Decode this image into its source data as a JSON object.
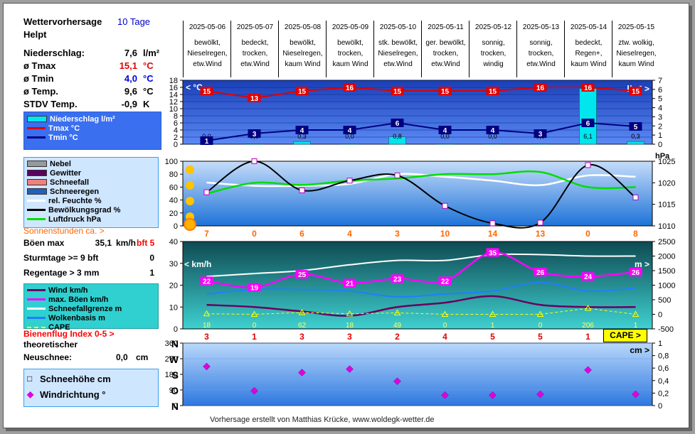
{
  "header": {
    "title": "Wettervorhersage",
    "range": "10 Tage",
    "place": "Helpt"
  },
  "stats": [
    {
      "label": "Niederschlag:",
      "value": "7,6",
      "unit": "l/m²",
      "color": "#000000"
    },
    {
      "label": "ø Tmax",
      "value": "15,1",
      "unit": "°C",
      "color": "#e00000"
    },
    {
      "label": "ø Tmin",
      "value": "4,0",
      "unit": "°C",
      "color": "#0000dd"
    },
    {
      "label": "ø Temp.",
      "value": "9,6",
      "unit": "°C",
      "color": "#000000"
    },
    {
      "label": "STDV Temp.",
      "value": "-0,9",
      "unit": "K",
      "color": "#000000"
    }
  ],
  "legend1": [
    {
      "label": "Niederschlag l/m²",
      "color": "#00e5ee",
      "kind": "bar"
    },
    {
      "label": "Tmax °C",
      "color": "#e00000",
      "kind": "line"
    },
    {
      "label": "Tmin °C",
      "color": "#000080",
      "kind": "line"
    }
  ],
  "legend2": [
    {
      "label": "Nebel",
      "color": "#999999",
      "kind": "bar"
    },
    {
      "label": "Gewitter",
      "color": "#5a0060",
      "kind": "bar"
    },
    {
      "label": "Schneefall",
      "color": "#f08080",
      "kind": "bar"
    },
    {
      "label": "Schneeregen",
      "color": "#2060c0",
      "kind": "bar"
    },
    {
      "label": "rel. Feuchte %",
      "color": "#ffffff",
      "kind": "line"
    },
    {
      "label": "Bewölkungsgrad %",
      "color": "#000000",
      "kind": "line"
    },
    {
      "label": "Luftdruck hPa",
      "color": "#00dd00",
      "kind": "line"
    }
  ],
  "sun": {
    "label": "Sonnenstunden ca. >"
  },
  "wind_stats": [
    {
      "label": "Böen max",
      "value": "35,1",
      "unit": "km/h",
      "extra": "bft 5"
    },
    {
      "label": "Sturmtage >= 9 bft",
      "value": "0",
      "unit": "",
      "extra": ""
    },
    {
      "label": "Regentage > 3 mm",
      "value": "1",
      "unit": "",
      "extra": ""
    }
  ],
  "legend3": [
    {
      "label": "Wind km/h",
      "color": "#6a0060",
      "kind": "line"
    },
    {
      "label": "max. Böen km/h",
      "color": "#ff00ff",
      "kind": "marker"
    },
    {
      "label": "Schneefallgrenze m",
      "color": "#ffffff",
      "kind": "line"
    },
    {
      "label": "Wolkenbasis m",
      "color": "#1e7fff",
      "kind": "line"
    },
    {
      "label": "CAPE",
      "color": "#ffff00",
      "kind": "dash"
    }
  ],
  "bees": {
    "label": "Bienenflug Index 0-5 >",
    "sub": "theoretischer"
  },
  "snow": {
    "label": "Neuschnee:",
    "value": "0,0",
    "unit": "cm"
  },
  "legend4": [
    {
      "label": "Schneehöhe cm",
      "kind": "square"
    },
    {
      "label": "Windrichtung °",
      "kind": "diamond"
    }
  ],
  "cape_button": "CAPE >",
  "footer": "Vorhersage erstellt von Matthias Krücke, www.woldegk-wetter.de",
  "chart_data": [
    {
      "type": "table",
      "columns": [
        "2025-05-06",
        "2025-05-07",
        "2025-05-08",
        "2025-05-09",
        "2025-05-10",
        "2025-05-11",
        "2025-05-12",
        "2025-05-13",
        "2025-05-14",
        "2025-05-15"
      ],
      "conditions": [
        [
          "bewölkt,",
          "Nieselregen,",
          "etw.Wind"
        ],
        [
          "bedeckt,",
          "trocken,",
          "etw.Wind"
        ],
        [
          "bewölkt,",
          "Nieselregen,",
          "kaum Wind"
        ],
        [
          "bewölkt,",
          "trocken,",
          "kaum Wind"
        ],
        [
          "stk. bewölkt,",
          "Nieselregen,",
          "etw.Wind"
        ],
        [
          "ger. bewölkt,",
          "trocken,",
          "etw.Wind"
        ],
        [
          "sonnig,",
          "trocken,",
          "windig"
        ],
        [
          "sonnig,",
          "trocken,",
          "etw.Wind"
        ],
        [
          "bedeckt,",
          "Regen+,",
          "kaum Wind"
        ],
        [
          "ztw. wolkig,",
          "Nieselregen,",
          "kaum Wind"
        ]
      ]
    },
    {
      "type": "line",
      "title": "Temperatur / Niederschlag",
      "ylabel": "°C",
      "y2label": "l/m²",
      "ylim": [
        0,
        18
      ],
      "y2lim": [
        0,
        7
      ],
      "yticks": [
        0,
        2,
        4,
        6,
        8,
        10,
        12,
        14,
        16,
        18
      ],
      "y2ticks": [
        0,
        1,
        2,
        3,
        4,
        5,
        6,
        7
      ],
      "series": [
        {
          "name": "Tmax °C",
          "values": [
            15,
            13,
            15,
            16,
            15,
            15,
            15,
            16,
            16,
            15
          ]
        },
        {
          "name": "Tmin °C",
          "values": [
            1,
            3,
            4,
            4,
            6,
            4,
            4,
            3,
            6,
            5
          ]
        },
        {
          "name": "Niederschlag l/m²",
          "values": [
            0.0,
            0.0,
            0.3,
            0.0,
            0.8,
            0.0,
            0.0,
            0.0,
            6.1,
            0.3
          ],
          "labels": [
            "0,0",
            "0,0",
            "0,3",
            "0,0",
            "0,8",
            "0,0",
            "0,0",
            "0,0",
            "6,1",
            "0,3"
          ]
        }
      ]
    },
    {
      "type": "line",
      "title": "Bewölkung / Feuchte / Luftdruck",
      "ylim": [
        0,
        100
      ],
      "y2label": "hPa",
      "y2lim": [
        1010,
        1025
      ],
      "yticks": [
        0,
        20,
        40,
        60,
        80,
        100
      ],
      "y2ticks": [
        1010,
        1015,
        1020,
        1025
      ],
      "series": [
        {
          "name": "Bewölkungsgrad %",
          "values": [
            52,
            100,
            55,
            70,
            78,
            31,
            4,
            5,
            94,
            44
          ]
        },
        {
          "name": "rel. Feuchte %",
          "values": [
            67,
            62,
            62,
            65,
            80,
            76,
            70,
            63,
            78,
            76
          ]
        },
        {
          "name": "Luftdruck hPa",
          "values": [
            1017.5,
            1020.0,
            1019.5,
            1020.5,
            1021.0,
            1022.0,
            1022.0,
            1022.5,
            1019.0,
            1019.0
          ]
        }
      ],
      "sunshine_hours": [
        7,
        0,
        6,
        4,
        3,
        10,
        14,
        13,
        0,
        8
      ]
    },
    {
      "type": "line",
      "title": "Wind",
      "ylim": [
        0,
        40
      ],
      "y2label": "m",
      "y2lim": [
        -500,
        2500
      ],
      "yticks": [
        0,
        10,
        20,
        30,
        40
      ],
      "y2ticks": [
        -500,
        0,
        500,
        1000,
        1500,
        2000,
        2500
      ],
      "series": [
        {
          "name": "max. Böen km/h",
          "values": [
            22,
            19,
            25,
            21,
            23,
            22,
            35,
            26,
            24,
            26
          ]
        },
        {
          "name": "Wind km/h",
          "values": [
            11,
            10,
            8,
            6,
            10,
            12,
            15,
            11,
            10,
            10
          ]
        },
        {
          "name": "Schneefallgrenze m",
          "values": [
            1300,
            1400,
            1500,
            1700,
            1850,
            1850,
            2050,
            2050,
            2000,
            2000
          ]
        },
        {
          "name": "Wolkenbasis m",
          "values": [
            700,
            850,
            850,
            800,
            600,
            700,
            800,
            1100,
            800,
            900
          ]
        },
        {
          "name": "CAPE",
          "values": [
            18,
            0,
            62,
            18,
            49,
            0,
            1,
            0,
            206,
            1
          ]
        }
      ],
      "bee_index": [
        3,
        1,
        3,
        3,
        2,
        4,
        5,
        5,
        1,
        1
      ]
    },
    {
      "type": "scatter",
      "title": "Windrichtung / Schneehöhe",
      "ylabel": "°",
      "y2label": "cm",
      "ylim": [
        0,
        360
      ],
      "y2lim": [
        0,
        1
      ],
      "yticks": [
        0,
        90,
        180,
        270,
        360
      ],
      "y2ticks": [
        "0",
        "0,2",
        "0,4",
        "0,6",
        "0,8",
        "1"
      ],
      "directions": [
        "N",
        "W",
        "S",
        "O",
        "N"
      ],
      "series": [
        {
          "name": "Windrichtung °",
          "values": [
            225,
            85,
            190,
            210,
            140,
            60,
            60,
            65,
            205,
            65
          ]
        }
      ]
    }
  ]
}
